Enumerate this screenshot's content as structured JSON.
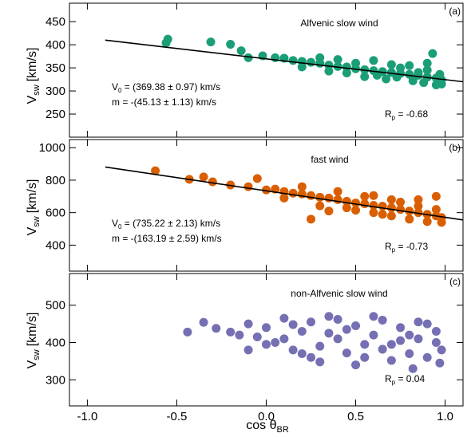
{
  "figure": {
    "xlabel_main": "cos θ",
    "xlabel_sub": "BR",
    "ylabel_main": "V",
    "ylabel_sub": "sw",
    "ylabel_unit": "[km/s]",
    "xlim": [
      -1.1,
      1.1
    ],
    "xticks": [
      -1.0,
      -0.5,
      0.0,
      0.5,
      1.0
    ],
    "xtick_labels": [
      "-1.0",
      "-0.5",
      "0.0",
      "0.5",
      "1.0"
    ]
  },
  "chart_data": [
    {
      "type": "scatter",
      "panel_label": "(a)",
      "title": "Alfvenic slow wind",
      "color": "#1b9e77",
      "ylim": [
        200,
        490
      ],
      "yticks": [
        250,
        300,
        350,
        400,
        450
      ],
      "fit": {
        "x": [
          -0.9,
          1.1
        ],
        "y": [
          410,
          320
        ]
      },
      "v0_text": "V",
      "v0_sub": "0",
      "v0_rest": " = (369.38 ± 0.97) km/s",
      "m_text": "m = -(45.13 ± 1.13) km/s",
      "rp_text": "R",
      "rp_sub": "p",
      "rp_rest": " = -0.68",
      "points": [
        [
          -0.55,
          412
        ],
        [
          -0.56,
          404
        ],
        [
          -0.31,
          406
        ],
        [
          -0.2,
          401
        ],
        [
          -0.14,
          387
        ],
        [
          -0.1,
          372
        ],
        [
          -0.02,
          376
        ],
        [
          0.05,
          372
        ],
        [
          0.1,
          371
        ],
        [
          0.15,
          366
        ],
        [
          0.2,
          364
        ],
        [
          0.25,
          362
        ],
        [
          0.3,
          360
        ],
        [
          0.35,
          356
        ],
        [
          0.4,
          353
        ],
        [
          0.45,
          352
        ],
        [
          0.5,
          348
        ],
        [
          0.55,
          346
        ],
        [
          0.6,
          344
        ],
        [
          0.65,
          342
        ],
        [
          0.7,
          340
        ],
        [
          0.75,
          338
        ],
        [
          0.8,
          336
        ],
        [
          0.85,
          334
        ],
        [
          0.9,
          330
        ],
        [
          0.95,
          328
        ],
        [
          0.98,
          324
        ],
        [
          0.6,
          366
        ],
        [
          0.3,
          372
        ],
        [
          0.7,
          357
        ],
        [
          0.8,
          355
        ],
        [
          0.9,
          345
        ],
        [
          0.45,
          339
        ],
        [
          0.95,
          313
        ],
        [
          0.55,
          331
        ],
        [
          0.88,
          318
        ],
        [
          0.93,
          381
        ],
        [
          0.67,
          326
        ],
        [
          0.82,
          322
        ],
        [
          0.97,
          336
        ],
        [
          0.35,
          343
        ],
        [
          0.75,
          350
        ],
        [
          0.62,
          334
        ],
        [
          0.4,
          368
        ],
        [
          0.85,
          340
        ],
        [
          0.2,
          352
        ],
        [
          0.9,
          360
        ],
        [
          0.73,
          330
        ],
        [
          0.5,
          360
        ],
        [
          0.98,
          315
        ]
      ]
    },
    {
      "type": "scatter",
      "panel_label": "(b)",
      "title": "fast wind",
      "color": "#d95f02",
      "ylim": [
        240,
        1050
      ],
      "yticks": [
        400,
        600,
        800,
        1000
      ],
      "fit": {
        "x": [
          -0.9,
          1.1
        ],
        "y": [
          881,
          555
        ]
      },
      "v0_text": "V",
      "v0_sub": "0",
      "v0_rest": " = (735.22 ± 2.13) km/s",
      "m_text": "m = -(163.19 ± 2.59) km/s",
      "rp_text": "R",
      "rp_sub": "p",
      "rp_rest": " = -0.73",
      "points": [
        [
          -0.62,
          858
        ],
        [
          -0.43,
          805
        ],
        [
          -0.35,
          820
        ],
        [
          -0.3,
          790
        ],
        [
          -0.2,
          770
        ],
        [
          -0.1,
          760
        ],
        [
          -0.05,
          810
        ],
        [
          0.0,
          740
        ],
        [
          0.05,
          745
        ],
        [
          0.1,
          730
        ],
        [
          0.15,
          720
        ],
        [
          0.2,
          715
        ],
        [
          0.25,
          705
        ],
        [
          0.3,
          695
        ],
        [
          0.35,
          690
        ],
        [
          0.4,
          680
        ],
        [
          0.45,
          670
        ],
        [
          0.5,
          660
        ],
        [
          0.55,
          655
        ],
        [
          0.6,
          645
        ],
        [
          0.65,
          640
        ],
        [
          0.7,
          630
        ],
        [
          0.75,
          620
        ],
        [
          0.8,
          610
        ],
        [
          0.85,
          600
        ],
        [
          0.9,
          590
        ],
        [
          0.95,
          580
        ],
        [
          0.98,
          570
        ],
        [
          0.4,
          730
        ],
        [
          0.6,
          705
        ],
        [
          0.7,
          680
        ],
        [
          0.85,
          640
        ],
        [
          0.95,
          620
        ],
        [
          0.5,
          615
        ],
        [
          0.65,
          590
        ],
        [
          0.8,
          560
        ],
        [
          0.9,
          545
        ],
        [
          0.98,
          540
        ],
        [
          0.3,
          642
        ],
        [
          0.45,
          630
        ],
        [
          0.75,
          665
        ],
        [
          0.55,
          700
        ],
        [
          0.2,
          760
        ],
        [
          0.35,
          610
        ],
        [
          0.85,
          680
        ],
        [
          0.25,
          560
        ],
        [
          0.95,
          700
        ],
        [
          0.1,
          690
        ],
        [
          0.7,
          580
        ],
        [
          0.6,
          600
        ]
      ]
    },
    {
      "type": "scatter",
      "panel_label": "(c)",
      "title": "non-Alfvenic slow wind",
      "color": "#7570b3",
      "ylim": [
        230,
        585
      ],
      "yticks": [
        300,
        400,
        500
      ],
      "rp_text": "R",
      "rp_sub": "p",
      "rp_rest": " = 0.04",
      "points": [
        [
          -0.44,
          428
        ],
        [
          -0.35,
          454
        ],
        [
          -0.28,
          438
        ],
        [
          -0.2,
          428
        ],
        [
          -0.15,
          420
        ],
        [
          -0.1,
          450
        ],
        [
          -0.05,
          415
        ],
        [
          0.0,
          440
        ],
        [
          0.05,
          400
        ],
        [
          0.1,
          465
        ],
        [
          0.15,
          380
        ],
        [
          0.2,
          430
        ],
        [
          0.25,
          455
        ],
        [
          0.3,
          390
        ],
        [
          0.35,
          470
        ],
        [
          0.4,
          410
        ],
        [
          0.45,
          372
        ],
        [
          0.5,
          445
        ],
        [
          0.55,
          360
        ],
        [
          0.6,
          420
        ],
        [
          0.65,
          460
        ],
        [
          0.7,
          395
        ],
        [
          0.75,
          440
        ],
        [
          0.8,
          370
        ],
        [
          0.85,
          410
        ],
        [
          0.9,
          450
        ],
        [
          0.95,
          400
        ],
        [
          0.98,
          380
        ],
        [
          0.3,
          348
        ],
        [
          0.5,
          340
        ],
        [
          0.7,
          352
        ],
        [
          0.82,
          330
        ],
        [
          0.6,
          470
        ],
        [
          0.4,
          462
        ],
        [
          0.9,
          360
        ],
        [
          0.2,
          370
        ],
        [
          0.1,
          410
        ],
        [
          0.55,
          395
        ],
        [
          0.75,
          405
        ],
        [
          0.95,
          430
        ],
        [
          -0.1,
          380
        ],
        [
          0.35,
          425
        ],
        [
          0.65,
          382
        ],
        [
          0.85,
          455
        ],
        [
          0.45,
          435
        ],
        [
          0.0,
          395
        ],
        [
          0.25,
          360
        ],
        [
          0.8,
          420
        ],
        [
          0.15,
          448
        ],
        [
          0.97,
          345
        ]
      ]
    }
  ]
}
